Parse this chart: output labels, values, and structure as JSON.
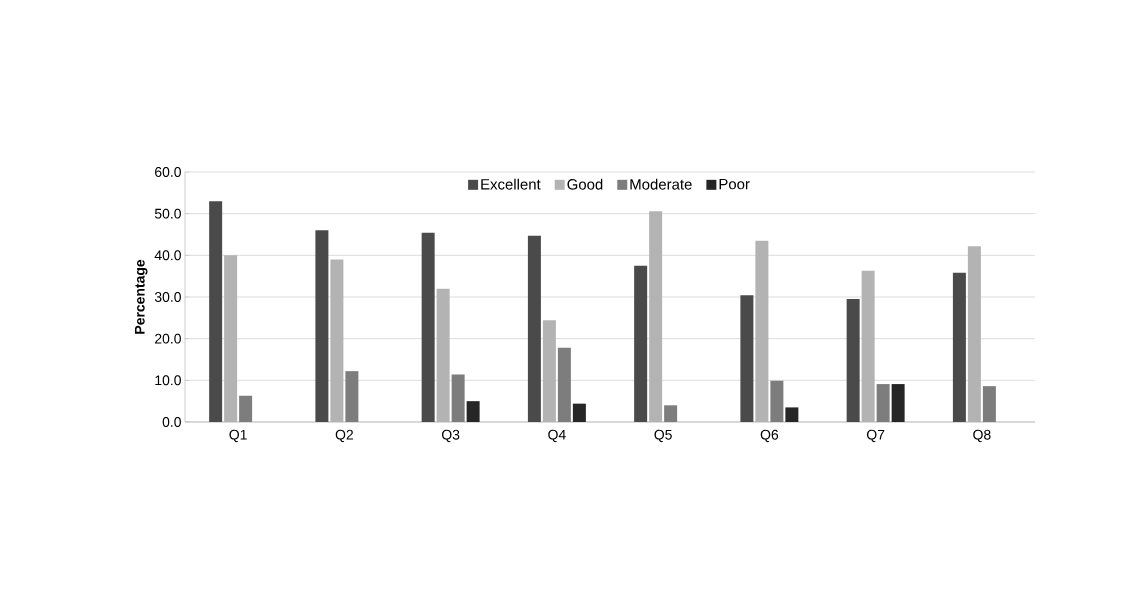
{
  "chart_data": {
    "type": "bar",
    "ylabel": "Percentage",
    "categories": [
      "Q1",
      "Q2",
      "Q3",
      "Q4",
      "Q5",
      "Q6",
      "Q7",
      "Q8"
    ],
    "series": [
      {
        "name": "Excellent",
        "color": "#4a4a4a",
        "values": [
          53.0,
          46.0,
          45.4,
          44.7,
          37.5,
          30.4,
          29.5,
          35.8
        ]
      },
      {
        "name": "Good",
        "color": "#b3b3b3",
        "values": [
          40.0,
          39.0,
          32.0,
          24.4,
          50.6,
          43.5,
          36.3,
          42.2
        ]
      },
      {
        "name": "Moderate",
        "color": "#7d7d7d",
        "values": [
          6.3,
          12.2,
          11.4,
          17.8,
          4.0,
          9.9,
          9.1,
          8.6
        ]
      },
      {
        "name": "Poor",
        "color": "#262626",
        "values": [
          0,
          0,
          5.0,
          4.4,
          0,
          3.5,
          9.1,
          0
        ]
      }
    ],
    "ylim": [
      0,
      60
    ],
    "yticks": [
      {
        "value": 0,
        "label": "0.0"
      },
      {
        "value": 10,
        "label": "10.0"
      },
      {
        "value": 20,
        "label": "20.0"
      },
      {
        "value": 30,
        "label": "30.0"
      },
      {
        "value": 40,
        "label": "40.0"
      },
      {
        "value": 50,
        "label": "50.0"
      },
      {
        "value": 60,
        "label": "60.0"
      }
    ],
    "grid": "y",
    "legend": "top"
  }
}
